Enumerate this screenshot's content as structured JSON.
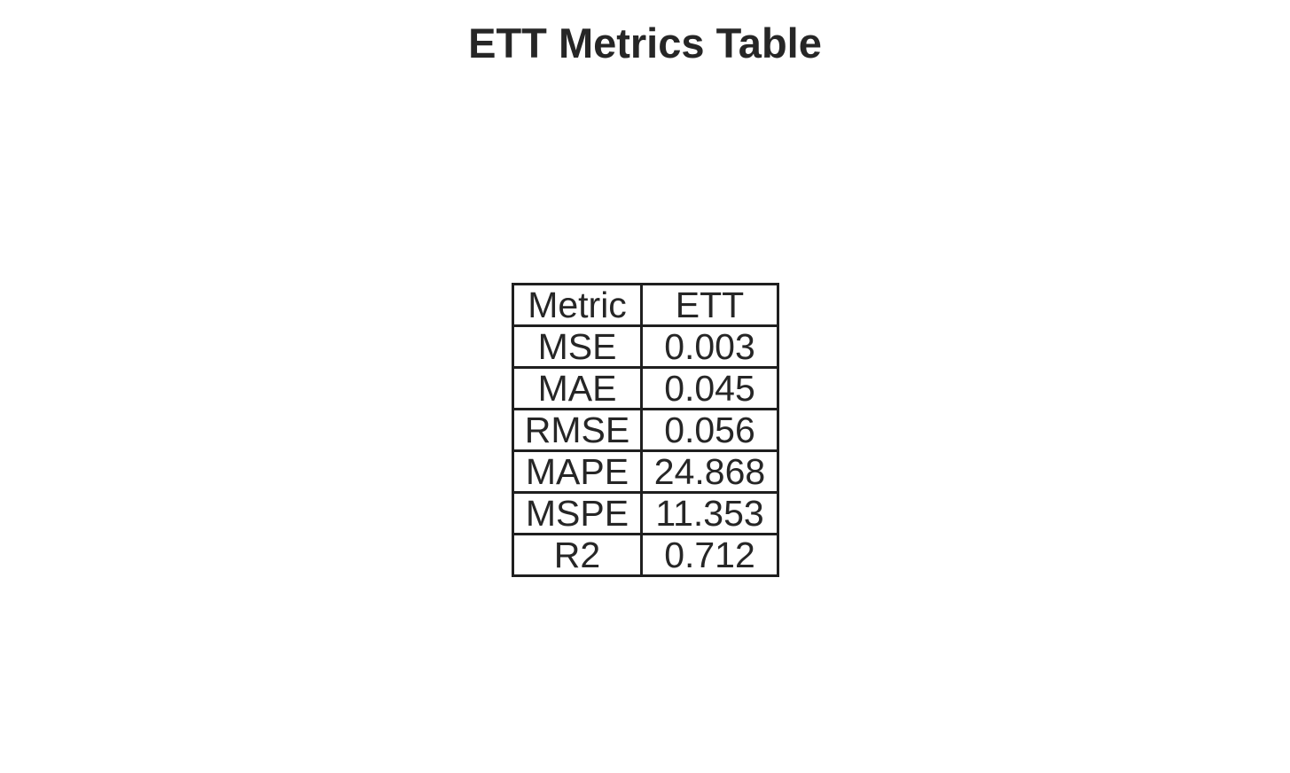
{
  "chart_data": {
    "type": "table",
    "title": "ETT Metrics Table",
    "columns": [
      "Metric",
      "ETT"
    ],
    "rows": [
      [
        "MSE",
        "0.003"
      ],
      [
        "MAE",
        "0.045"
      ],
      [
        "RMSE",
        "0.056"
      ],
      [
        "MAPE",
        "24.868"
      ],
      [
        "MSPE",
        "11.353"
      ],
      [
        "R2",
        "0.712"
      ]
    ]
  }
}
